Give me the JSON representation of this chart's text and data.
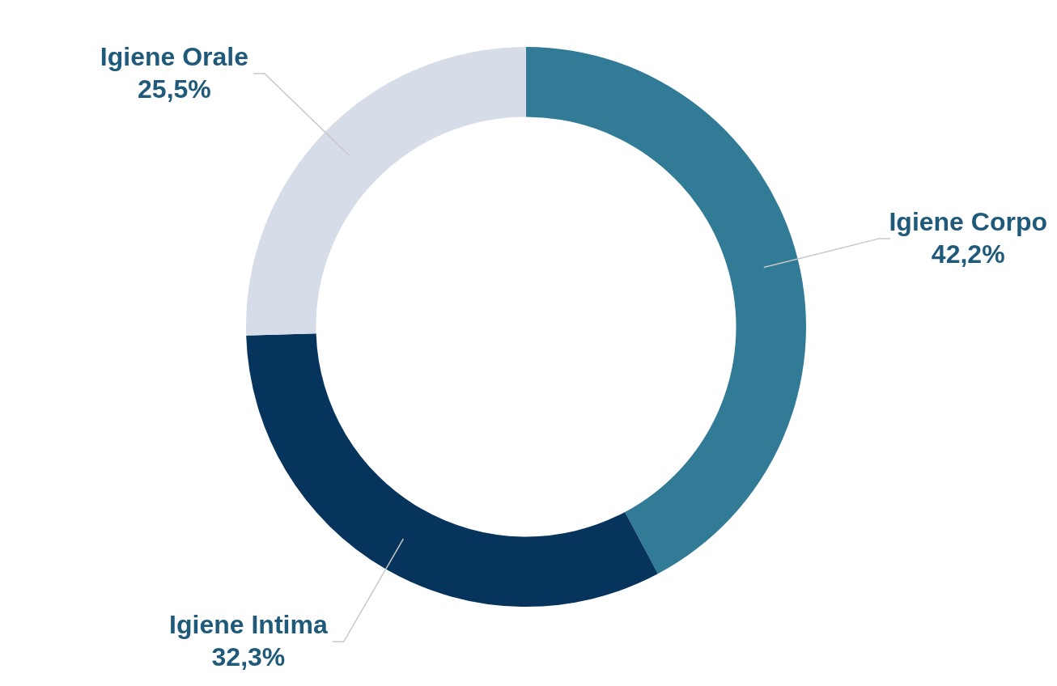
{
  "chart_data": {
    "type": "donut",
    "categories": [
      "Igiene Corpo",
      "Igiene Intima",
      "Igiene Orale"
    ],
    "values": [
      42.2,
      32.3,
      25.5
    ],
    "colors": [
      "#317b97",
      "#06345c",
      "#d6dde9"
    ],
    "value_labels": [
      "42,2%",
      "32,3%",
      "25,5%"
    ]
  }
}
